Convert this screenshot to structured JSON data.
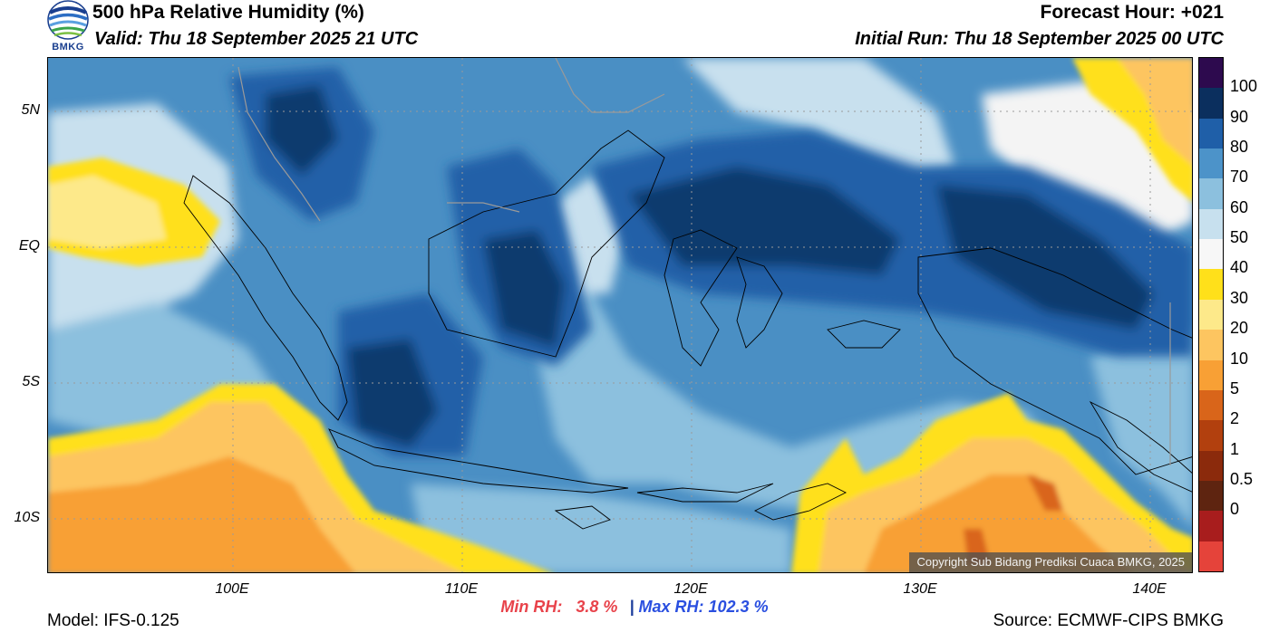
{
  "header": {
    "title": "500 hPa Relative Humidity (%)",
    "valid": "Valid: Thu 18 September 2025 21 UTC",
    "forecast_hour": "Forecast Hour: +021",
    "initial_run": "Initial Run: Thu 18 September 2025 00 UTC",
    "logo_text": "BMKG"
  },
  "map": {
    "y_ticks": [
      "5N",
      "EQ",
      "5S",
      "10S"
    ],
    "x_ticks": [
      "100E",
      "110E",
      "120E",
      "130E",
      "140E"
    ],
    "copyright": "Copyright Sub Bidang Prediksi Cuaca BMKG, 2025",
    "colors": {
      "ocean_default": "#4a8fc4",
      "very_humid": "#0b3a6e",
      "humid": "#2060a8",
      "moderate": "#7fb4d8",
      "light": "#c8e0ee",
      "white": "#f4f4f4",
      "yellow": "#ffe01a",
      "light_orange": "#fdbf55",
      "orange": "#f89c2e",
      "dark_orange": "#d8651a",
      "coast": "#000000"
    }
  },
  "stats": {
    "min_label": "Min RH:",
    "min_value": "3.8 %",
    "separator": "|",
    "max_label": "Max RH: 102.3 %"
  },
  "footer": {
    "model": "Model: IFS-0.125",
    "source": "Source: ECMWF-CIPS BMKG"
  },
  "colorbar": {
    "labels": [
      "100",
      "90",
      "80",
      "70",
      "60",
      "50",
      "40",
      "30",
      "20",
      "10",
      "5",
      "2",
      "1",
      "0.5",
      "0"
    ],
    "colors": [
      "#2d0a4e",
      "#0b2f5e",
      "#1f5fa8",
      "#4c93c9",
      "#8cc0de",
      "#c7e0ee",
      "#f7f7f7",
      "#ffe01a",
      "#fde98a",
      "#fdc560",
      "#f8a035",
      "#d9651a",
      "#b2400e",
      "#8b2a0c",
      "#5e2410",
      "#a81d1d",
      "#e5433a"
    ]
  }
}
